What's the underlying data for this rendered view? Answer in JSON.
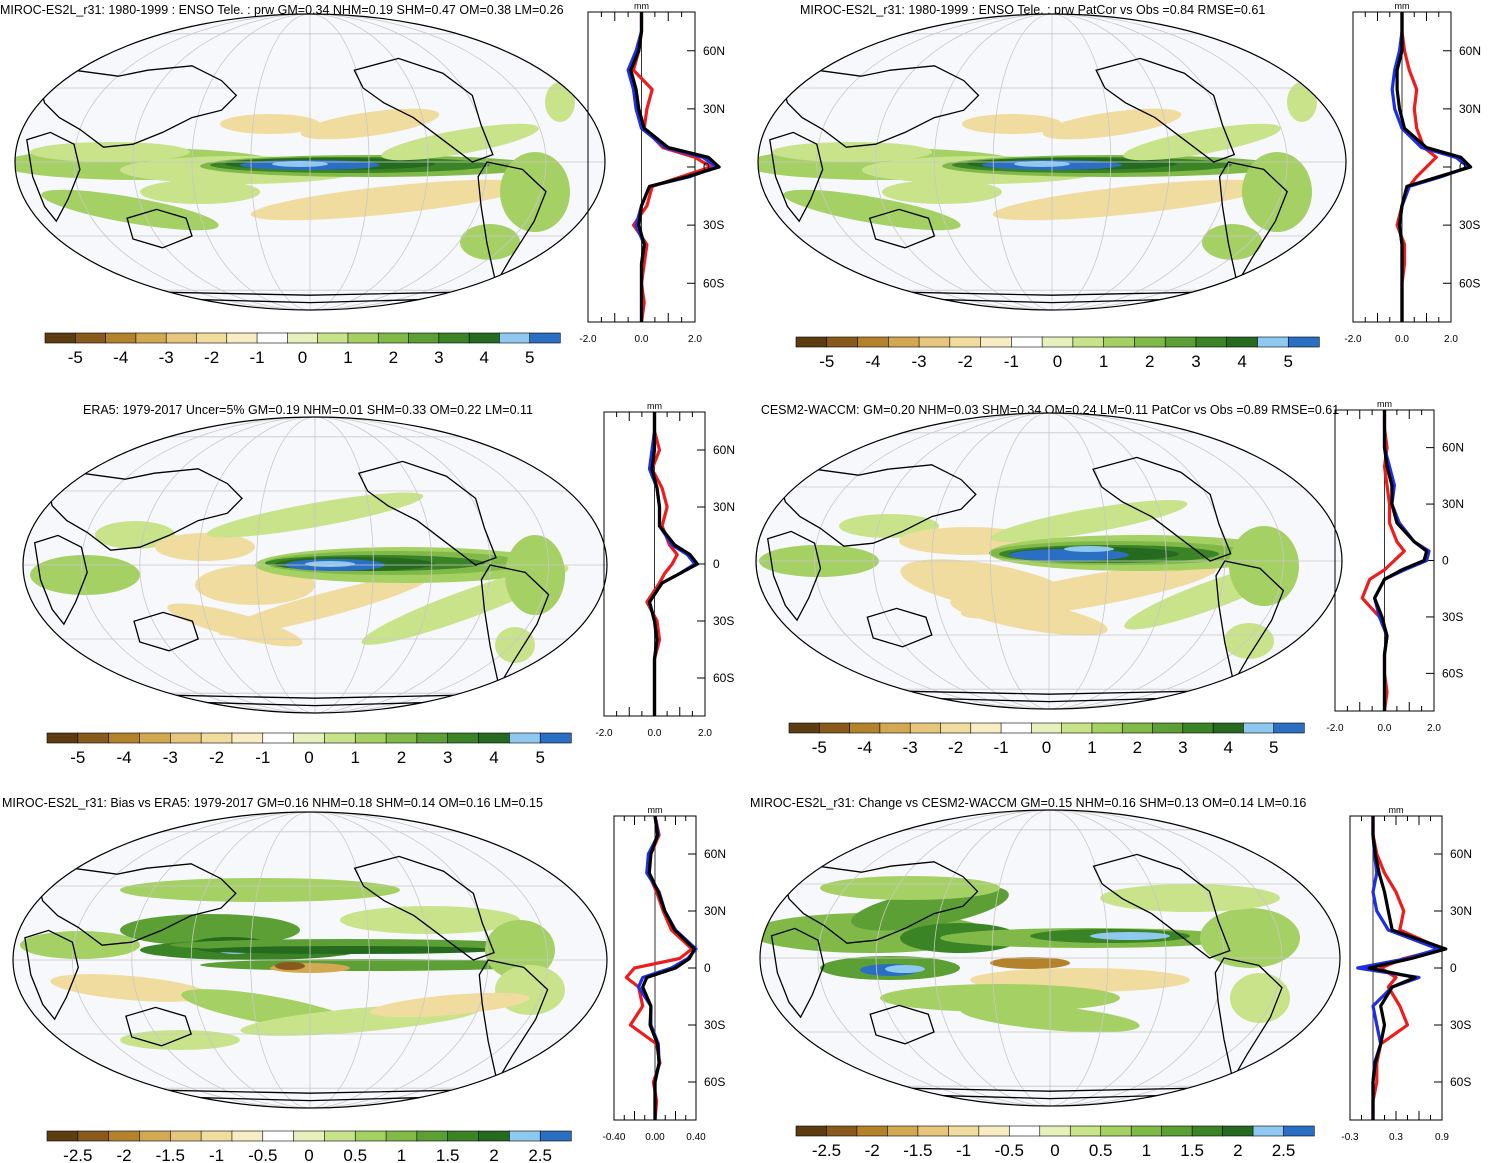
{
  "colors": {
    "ocean": "#f7f8fc",
    "graticule": "#c8c8c8",
    "coast": "#000000",
    "obs_line": "#ee1c1c",
    "model_line": "#1c2ee6",
    "ref_line": "#000000",
    "palette": [
      "#5e3c12",
      "#8a5a1c",
      "#b5822c",
      "#d2a850",
      "#e6c67c",
      "#f1dc9f",
      "#f8ecc4",
      "#ffffff",
      "#e6f0bd",
      "#c9e38a",
      "#a5d063",
      "#80b948",
      "#5c9f34",
      "#3b8426",
      "#256a1e",
      "#8fc9f0",
      "#2b6fc4"
    ]
  },
  "panels": [
    {
      "title": "MIROC-ES2L_r31: 1980-1999 : ENSO Tele. : prw GM=0.34 NHM=0.19 SHM=0.47 OM=0.38 LM=0.26",
      "colorbar": {
        "labels": [
          "-5",
          "-4",
          "-3",
          "-2",
          "-1",
          "0",
          "1",
          "2",
          "3",
          "4",
          "5"
        ]
      },
      "profile": {
        "unit": "mm",
        "xticks": [
          "-2.0",
          "0.0",
          "2.0"
        ],
        "yticks": [
          "60N",
          "30N",
          "0",
          "30S",
          "60S"
        ]
      }
    },
    {
      "title": "MIROC-ES2L_r31: 1980-1999 : ENSO Tele. : prw PatCor vs Obs =0.84 RMSE=0.61",
      "colorbar": {
        "labels": [
          "-5",
          "-4",
          "-3",
          "-2",
          "-1",
          "0",
          "1",
          "2",
          "3",
          "4",
          "5"
        ]
      },
      "profile": {
        "unit": "mm",
        "xticks": [
          "-2.0",
          "0.0",
          "2.0"
        ],
        "yticks": [
          "60N",
          "30N",
          "0",
          "30S",
          "60S"
        ]
      }
    },
    {
      "title": "ERA5: 1979-2017 Uncer=5% GM=0.19 NHM=0.01 SHM=0.33 OM=0.22 LM=0.11",
      "colorbar": {
        "labels": [
          "-5",
          "-4",
          "-3",
          "-2",
          "-1",
          "0",
          "1",
          "2",
          "3",
          "4",
          "5"
        ]
      },
      "profile": {
        "unit": "mm",
        "xticks": [
          "-2.0",
          "0.0",
          "2.0"
        ],
        "yticks": [
          "60N",
          "30N",
          "0",
          "30S",
          "60S"
        ]
      }
    },
    {
      "title": "CESM2-WACCM: GM=0.20 NHM=0.03 SHM=0.34 OM=0.24 LM=0.11 PatCor vs Obs =0.89 RMSE=0.61",
      "colorbar": {
        "labels": [
          "-5",
          "-4",
          "-3",
          "-2",
          "-1",
          "0",
          "1",
          "2",
          "3",
          "4",
          "5"
        ]
      },
      "profile": {
        "unit": "mm",
        "xticks": [
          "-2.0",
          "0.0",
          "2.0"
        ],
        "yticks": [
          "60N",
          "30N",
          "0",
          "30S",
          "60S"
        ]
      }
    },
    {
      "title": "MIROC-ES2L_r31: Bias vs ERA5: 1979-2017 GM=0.16 NHM=0.18 SHM=0.14 OM=0.16 LM=0.15",
      "colorbar": {
        "labels": [
          "-2.5",
          "-2",
          "-1.5",
          "-1",
          "-0.5",
          "0",
          "0.5",
          "1",
          "1.5",
          "2",
          "2.5"
        ]
      },
      "profile": {
        "unit": "mm",
        "xticks": [
          "-0.40",
          "0.00",
          "0.40"
        ],
        "yticks": [
          "60N",
          "30N",
          "0",
          "30S",
          "60S"
        ]
      }
    },
    {
      "title": "MIROC-ES2L_r31: Change vs CESM2-WACCM GM=0.15 NHM=0.16 SHM=0.13 OM=0.14 LM=0.16",
      "colorbar": {
        "labels": [
          "-2.5",
          "-2",
          "-1.5",
          "-1",
          "-0.5",
          "0",
          "0.5",
          "1",
          "1.5",
          "2",
          "2.5"
        ]
      },
      "profile": {
        "unit": "mm",
        "xticks": [
          "-0.3",
          "0.3",
          "0.9"
        ],
        "yticks": [
          "60N",
          "30N",
          "0",
          "30S",
          "60S"
        ]
      }
    }
  ],
  "chart_data": [
    {
      "type": "heatmap",
      "title": "MIROC-ES2L_r31: 1980-1999 : ENSO Tele. : prw GM=0.34 NHM=0.19 SHM=0.47 OM=0.38 LM=0.26",
      "colorbar_levels": [
        -5.5,
        -5,
        -4.5,
        -4,
        -3.5,
        -3,
        -2.5,
        -2,
        -1.5,
        -1,
        -0.5,
        0,
        0.5,
        1,
        1.5,
        2,
        2.5,
        3,
        3.5,
        4,
        4.5,
        5,
        5.5
      ],
      "zonal_profile": {
        "xlim": [
          -2.0,
          2.0
        ],
        "lat": [
          80,
          70,
          60,
          50,
          40,
          30,
          20,
          10,
          5,
          0,
          -5,
          -10,
          -20,
          -30,
          -40,
          -50,
          -60,
          -70,
          -80
        ],
        "series": [
          {
            "values": [
              0.0,
              0.0,
              -0.1,
              -0.3,
              0.4,
              0.2,
              0.1,
              0.8,
              2.0,
              2.6,
              1.5,
              0.4,
              0.2,
              -0.3,
              0.2,
              0.1,
              0.0,
              0.1,
              0.0
            ]
          },
          {
            "values": [
              0.0,
              0.0,
              -0.2,
              -0.5,
              -0.3,
              -0.2,
              0.0,
              0.9,
              2.3,
              2.8,
              1.8,
              0.3,
              0.0,
              -0.2,
              0.1,
              0.0,
              0.0,
              0.0,
              0.0
            ]
          },
          {
            "values": [
              0.0,
              0.0,
              -0.1,
              -0.4,
              -0.2,
              -0.1,
              0.1,
              1.0,
              2.5,
              2.9,
              1.7,
              0.3,
              0.0,
              -0.1,
              0.1,
              0.0,
              0.0,
              0.0,
              0.0
            ]
          }
        ]
      }
    },
    {
      "type": "heatmap",
      "title": "MIROC-ES2L_r31: 1980-1999 : ENSO Tele. : prw PatCor vs Obs =0.84 RMSE=0.61",
      "colorbar_levels": [
        -5.5,
        -5,
        -4.5,
        -4,
        -3.5,
        -3,
        -2.5,
        -2,
        -1.5,
        -1,
        -0.5,
        0,
        0.5,
        1,
        1.5,
        2,
        2.5,
        3,
        3.5,
        4,
        4.5,
        5,
        5.5
      ],
      "zonal_profile": {
        "xlim": [
          -2.0,
          2.0
        ],
        "lat": [
          80,
          70,
          60,
          50,
          40,
          30,
          20,
          10,
          5,
          0,
          -5,
          -10,
          -20,
          -30,
          -40,
          -50,
          -60,
          -70,
          -80
        ],
        "series": [
          {
            "values": [
              0.0,
              0.0,
              0.1,
              0.3,
              0.6,
              0.5,
              0.6,
              0.9,
              1.4,
              1.0,
              0.6,
              0.3,
              0.0,
              -0.2,
              0.1,
              0.1,
              0.0,
              0.0,
              0.0
            ]
          },
          {
            "values": [
              0.0,
              0.0,
              -0.1,
              -0.3,
              -0.4,
              -0.3,
              0.0,
              0.8,
              2.2,
              2.7,
              1.6,
              0.3,
              0.0,
              -0.1,
              0.0,
              0.0,
              0.0,
              0.0,
              0.0
            ]
          },
          {
            "values": [
              0.0,
              0.0,
              0.0,
              -0.2,
              -0.2,
              -0.1,
              0.1,
              1.0,
              2.4,
              2.8,
              1.5,
              0.2,
              0.0,
              -0.1,
              0.0,
              0.0,
              0.0,
              0.0,
              0.0
            ]
          }
        ]
      }
    },
    {
      "type": "heatmap",
      "title": "ERA5: 1979-2017 Uncer=5% GM=0.19 NHM=0.01 SHM=0.33 OM=0.22 LM=0.11",
      "colorbar_levels": [
        -5.5,
        -5,
        -4.5,
        -4,
        -3.5,
        -3,
        -2.5,
        -2,
        -1.5,
        -1,
        -0.5,
        0,
        0.5,
        1,
        1.5,
        2,
        2.5,
        3,
        3.5,
        4,
        4.5,
        5,
        5.5
      ],
      "zonal_profile": {
        "xlim": [
          -2.0,
          2.0
        ],
        "lat": [
          80,
          70,
          60,
          50,
          40,
          30,
          20,
          10,
          5,
          0,
          -5,
          -10,
          -20,
          -30,
          -40,
          -50,
          -60,
          -70,
          -80
        ],
        "series": [
          {
            "values": [
              0.0,
              0.0,
              0.2,
              -0.1,
              0.3,
              0.5,
              0.3,
              0.6,
              0.9,
              0.7,
              0.4,
              0.2,
              -0.3,
              0.1,
              0.2,
              0.0,
              0.0,
              0.0,
              0.0
            ]
          },
          {
            "values": [
              0.0,
              0.0,
              -0.1,
              -0.2,
              0.1,
              0.2,
              0.2,
              0.7,
              1.3,
              1.6,
              1.0,
              0.3,
              -0.2,
              0.0,
              0.1,
              0.0,
              0.0,
              0.0,
              0.0
            ]
          },
          {
            "values": [
              0.0,
              0.0,
              0.0,
              -0.1,
              0.1,
              0.2,
              0.2,
              0.8,
              1.4,
              1.7,
              1.0,
              0.3,
              -0.2,
              0.0,
              0.1,
              0.0,
              0.0,
              0.0,
              0.0
            ]
          }
        ]
      }
    },
    {
      "type": "heatmap",
      "title": "CESM2-WACCM: GM=0.20 NHM=0.03 SHM=0.34 OM=0.24 LM=0.11 PatCor vs Obs =0.89 RMSE=0.61",
      "colorbar_levels": [
        -5.5,
        -5,
        -4.5,
        -4,
        -3.5,
        -3,
        -2.5,
        -2,
        -1.5,
        -1,
        -0.5,
        0,
        0.5,
        1,
        1.5,
        2,
        2.5,
        3,
        3.5,
        4,
        4.5,
        5,
        5.5
      ],
      "zonal_profile": {
        "xlim": [
          -2.0,
          2.0
        ],
        "lat": [
          80,
          70,
          60,
          50,
          40,
          30,
          20,
          10,
          5,
          0,
          -5,
          -10,
          -20,
          -30,
          -40,
          -50,
          -60,
          -70,
          -80
        ],
        "series": [
          {
            "values": [
              0.0,
              0.0,
              0.1,
              0.0,
              0.1,
              0.2,
              0.2,
              0.5,
              0.8,
              0.4,
              0.0,
              -0.6,
              -0.9,
              -0.2,
              0.1,
              0.0,
              0.0,
              0.1,
              0.0
            ]
          },
          {
            "values": [
              0.0,
              0.0,
              0.0,
              0.2,
              0.4,
              0.3,
              0.6,
              1.2,
              1.8,
              1.7,
              0.8,
              0.0,
              -0.4,
              -0.2,
              0.1,
              0.0,
              0.0,
              0.0,
              0.0
            ]
          },
          {
            "values": [
              0.0,
              0.0,
              0.0,
              0.1,
              0.3,
              0.3,
              0.5,
              1.2,
              1.7,
              1.6,
              0.7,
              0.0,
              -0.4,
              -0.1,
              0.1,
              0.0,
              0.0,
              0.0,
              0.0
            ]
          }
        ]
      }
    },
    {
      "type": "heatmap",
      "title": "MIROC-ES2L_r31: Bias vs ERA5: 1979-2017 GM=0.16 NHM=0.18 SHM=0.14 OM=0.16 LM=0.15",
      "colorbar_levels": [
        -2.75,
        -2.5,
        -2.25,
        -2,
        -1.75,
        -1.5,
        -1.25,
        -1,
        -0.75,
        -0.5,
        -0.25,
        0,
        0.25,
        0.5,
        0.75,
        1,
        1.25,
        1.5,
        1.75,
        2,
        2.25,
        2.5,
        2.75
      ],
      "zonal_profile": {
        "xlim": [
          -0.5,
          0.5
        ],
        "lat": [
          80,
          70,
          60,
          50,
          40,
          30,
          20,
          10,
          5,
          0,
          -5,
          -10,
          -20,
          -30,
          -40,
          -50,
          -60,
          -70,
          -80
        ],
        "series": [
          {
            "values": [
              0.0,
              0.05,
              -0.05,
              -0.08,
              0.02,
              0.1,
              0.2,
              0.45,
              0.3,
              -0.25,
              -0.35,
              -0.2,
              -0.15,
              -0.3,
              0.02,
              0.06,
              -0.02,
              0.02,
              0.0
            ]
          },
          {
            "values": [
              0.0,
              0.04,
              -0.08,
              -0.1,
              0.05,
              0.12,
              0.25,
              0.5,
              0.4,
              0.2,
              -0.15,
              -0.2,
              -0.05,
              -0.05,
              0.04,
              0.05,
              0.0,
              0.0,
              0.0
            ]
          },
          {
            "values": [
              0.0,
              0.03,
              -0.05,
              -0.07,
              0.04,
              0.12,
              0.24,
              0.48,
              0.42,
              0.25,
              -0.1,
              -0.15,
              -0.05,
              -0.06,
              0.03,
              0.05,
              0.0,
              0.0,
              0.0
            ]
          }
        ]
      }
    },
    {
      "type": "heatmap",
      "title": "MIROC-ES2L_r31: Change vs CESM2-WACCM GM=0.15 NHM=0.16 SHM=0.13 OM=0.14 LM=0.16",
      "colorbar_levels": [
        -2.75,
        -2.5,
        -2.25,
        -2,
        -1.75,
        -1.5,
        -1.25,
        -1,
        -0.75,
        -0.5,
        -0.25,
        0,
        0.25,
        0.5,
        0.75,
        1,
        1.25,
        1.5,
        1.75,
        2,
        2.25,
        2.5,
        2.75
      ],
      "zonal_profile": {
        "xlim": [
          -0.3,
          0.9
        ],
        "lat": [
          80,
          70,
          60,
          50,
          40,
          30,
          20,
          10,
          5,
          0,
          -5,
          -10,
          -20,
          -30,
          -40,
          -50,
          -60,
          -70,
          -80
        ],
        "series": [
          {
            "values": [
              0.0,
              0.0,
              0.05,
              0.15,
              0.3,
              0.4,
              0.35,
              0.9,
              0.4,
              0.1,
              0.3,
              0.2,
              0.35,
              0.45,
              0.1,
              0.05,
              0.05,
              0.0,
              0.0
            ]
          },
          {
            "values": [
              0.0,
              0.0,
              0.02,
              0.05,
              0.0,
              0.05,
              0.2,
              0.85,
              0.45,
              -0.2,
              0.6,
              0.25,
              0.0,
              0.05,
              0.1,
              0.02,
              0.0,
              0.0,
              0.0
            ]
          },
          {
            "values": [
              0.0,
              0.0,
              0.03,
              0.08,
              0.15,
              0.2,
              0.25,
              0.95,
              0.5,
              -0.05,
              0.55,
              0.25,
              0.1,
              0.15,
              0.1,
              0.03,
              0.0,
              0.0,
              0.0
            ]
          }
        ]
      }
    }
  ]
}
